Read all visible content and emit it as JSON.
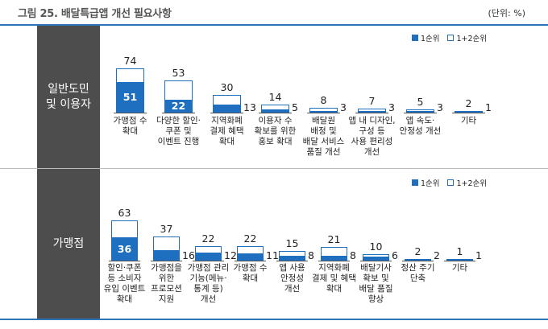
{
  "header": {
    "title": "그림 25. 배달특급앱 개선 필요사항",
    "unit": "(단위: %)"
  },
  "legend": {
    "first": "1순위",
    "total": "1+2순위"
  },
  "colors": {
    "first": "#1f6fc0",
    "total_border": "#1f6fc0",
    "side": "#4d4d4d",
    "rule": "#2e75b6"
  },
  "chart_data": [
    {
      "type": "bar",
      "panel": "일반도민 및 이용자",
      "panel_lines": [
        "일반도민",
        "및 이용자"
      ],
      "categories": [
        "가맹점 수\n확대",
        "다양한 할인·\n쿠폰 및\n이벤트 진행",
        "지역화폐\n결제 혜택\n확대",
        "이용자 수\n확보를 위한\n홍보 확대",
        "배달원\n배정 및\n배달 서비스\n품질 개선",
        "앱 내 디자인,\n구성 등\n사용 편리성\n개선",
        "앱 속도·\n안정성 개선",
        "기타"
      ],
      "series": [
        {
          "name": "1순위",
          "values": [
            51,
            22,
            13,
            5,
            3,
            3,
            3,
            1
          ]
        },
        {
          "name": "1+2순위",
          "values": [
            74,
            53,
            30,
            14,
            8,
            7,
            5,
            2
          ]
        }
      ],
      "ylim": [
        0,
        100
      ]
    },
    {
      "type": "bar",
      "panel": "가맹점",
      "panel_lines": [
        "가맹점"
      ],
      "categories": [
        "할인·쿠폰\n등 소비자\n유입 이벤트\n확대",
        "가맹점을\n위한\n프로모션\n지원",
        "가맹점 관리\n기능(메뉴·\n통계 등)\n개선",
        "가맹점 수\n확대",
        "앱 사용\n안정성\n개선",
        "지역화폐\n결제 및 혜택\n확대",
        "배달기사\n확보 및\n배달 품질\n향상",
        "정산 주기\n단축",
        "기타"
      ],
      "series": [
        {
          "name": "1순위",
          "values": [
            36,
            16,
            12,
            11,
            8,
            8,
            6,
            2,
            1
          ]
        },
        {
          "name": "1+2순위",
          "values": [
            63,
            37,
            22,
            22,
            15,
            21,
            10,
            2,
            1
          ]
        }
      ],
      "ylim": [
        0,
        100
      ]
    }
  ]
}
